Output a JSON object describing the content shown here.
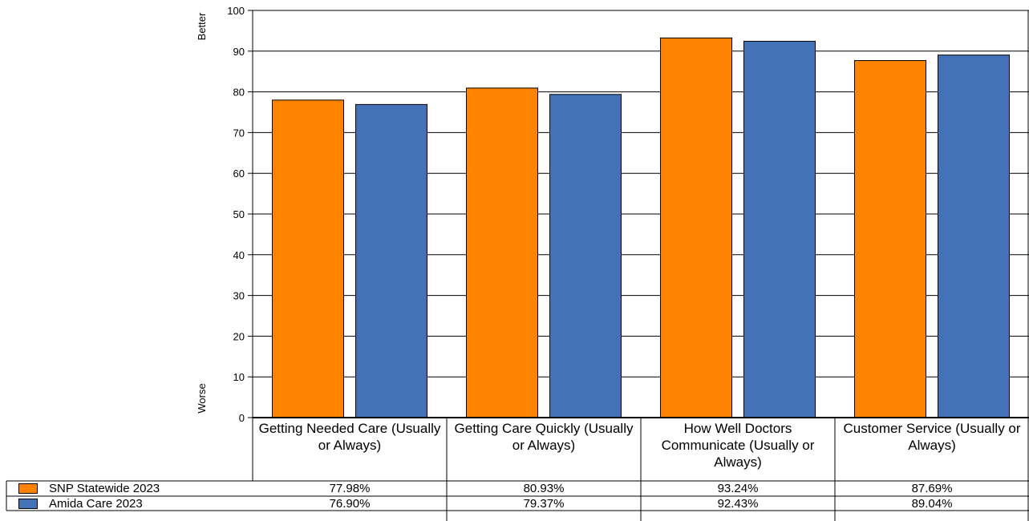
{
  "chart_data": {
    "type": "bar",
    "title": "",
    "categories": [
      "Getting Needed Care (Usually or Always)",
      "Getting Care Quickly (Usually or Always)",
      "How Well Doctors Communicate (Usually or Always)",
      "Customer Service (Usually or Always)"
    ],
    "series": [
      {
        "name": "SNP Statewide 2023",
        "color": "#ff8200",
        "values": [
          77.98,
          80.93,
          93.24,
          87.69
        ],
        "labels": [
          "77.98%",
          "80.93%",
          "93.24%",
          "87.69%"
        ]
      },
      {
        "name": "Amida Care 2023",
        "color": "#4472b8",
        "values": [
          76.9,
          79.37,
          92.43,
          89.04
        ],
        "labels": [
          "76.90%",
          "79.37%",
          "92.43%",
          "89.04%"
        ]
      }
    ],
    "ylim": [
      0,
      100
    ],
    "yticks": [
      0,
      10,
      20,
      30,
      40,
      50,
      60,
      70,
      80,
      90,
      100
    ],
    "y_top_label": "Better",
    "y_bottom_label": "Worse",
    "grid": true,
    "legend": "bottom-table"
  }
}
